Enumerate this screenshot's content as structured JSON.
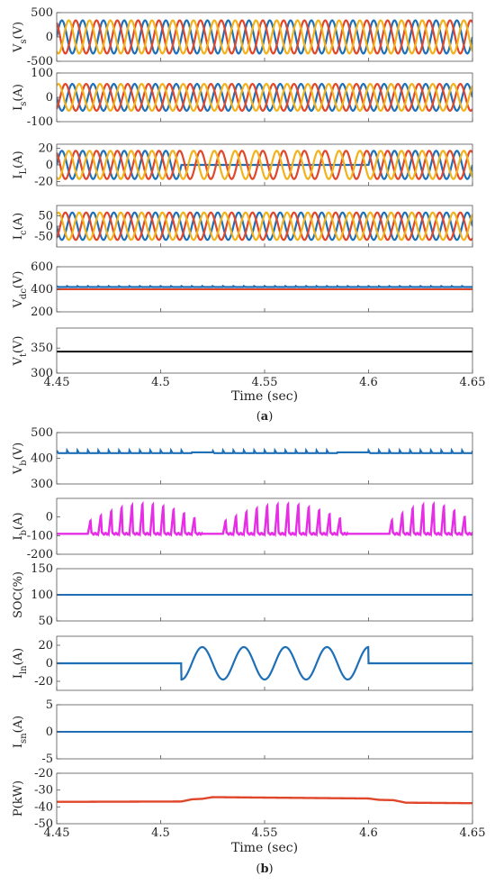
{
  "x_ticks": [
    "4.45",
    "4.5",
    "4.55",
    "4.6",
    "4.65"
  ],
  "colors": {
    "blue": "#1f6fb6",
    "red": "#e0462a",
    "yellow": "#f2b21b",
    "magenta": "#e62ee6",
    "black": "#111111",
    "frame": "#555555"
  },
  "chart_data": [
    {
      "type": "line",
      "panel": "a",
      "xlim": [
        4.45,
        4.65
      ],
      "xlabel": "Time (sec)",
      "caption": "(a)",
      "subplots": [
        {
          "ylabel_main": "V",
          "ylabel_sub": "s",
          "ylabel_unit": "(V)",
          "ylim": [
            -500,
            500
          ],
          "yticks": [
            "500",
            "0",
            "-500"
          ],
          "series": [
            {
              "color": "blue",
              "kind": "sine",
              "amplitude": 340,
              "frequency": 100,
              "phase_deg": 0
            },
            {
              "color": "red",
              "kind": "sine",
              "amplitude": 340,
              "frequency": 100,
              "phase_deg": 120
            },
            {
              "color": "yellow",
              "kind": "sine",
              "amplitude": 340,
              "frequency": 100,
              "phase_deg": 240
            }
          ]
        },
        {
          "ylabel_main": "I",
          "ylabel_sub": "s",
          "ylabel_unit": "(A)",
          "ylim": [
            -100,
            100
          ],
          "yticks": [
            "100",
            "0",
            "-100"
          ],
          "series": [
            {
              "color": "blue",
              "kind": "sine",
              "amplitude": 55,
              "frequency": 100,
              "phase_deg": 180
            },
            {
              "color": "red",
              "kind": "sine",
              "amplitude": 55,
              "frequency": 100,
              "phase_deg": 300
            },
            {
              "color": "yellow",
              "kind": "sine",
              "amplitude": 55,
              "frequency": 100,
              "phase_deg": 60
            }
          ]
        },
        {
          "ylabel_main": "I",
          "ylabel_sub": "L",
          "ylabel_unit": "(A)",
          "ylim": [
            -25,
            25
          ],
          "yticks": [
            "20",
            "0",
            "-20"
          ],
          "series": [
            {
              "color": "blue",
              "kind": "sine",
              "amplitude": 17,
              "frequency": 100,
              "phase_deg": 0,
              "zero_from": 4.51,
              "zero_to": 4.6
            },
            {
              "color": "red",
              "kind": "sine",
              "amplitude": 17,
              "frequency": 100,
              "phase_deg": 120
            },
            {
              "color": "yellow",
              "kind": "sine",
              "amplitude": 17,
              "frequency": 100,
              "phase_deg": 240
            }
          ]
        },
        {
          "ylabel_main": "I",
          "ylabel_sub": "c",
          "ylabel_unit": "(A)",
          "ylim": [
            -100,
            100
          ],
          "yticks": [
            "50",
            "0",
            "-50"
          ],
          "series": [
            {
              "color": "blue",
              "kind": "sine",
              "amplitude": 66,
              "frequency": 100,
              "phase_deg": 180
            },
            {
              "color": "red",
              "kind": "sine",
              "amplitude": 66,
              "frequency": 100,
              "phase_deg": 300
            },
            {
              "color": "yellow",
              "kind": "sine",
              "amplitude": 66,
              "frequency": 100,
              "phase_deg": 60
            }
          ]
        },
        {
          "ylabel_main": "V",
          "ylabel_sub": "dc",
          "ylabel_unit": "(V)",
          "ylim": [
            200,
            600
          ],
          "yticks": [
            "600",
            "400",
            "200"
          ],
          "series": [
            {
              "color": "blue",
              "kind": "ripple",
              "value": 420,
              "ripple": 4,
              "frequency": 200
            },
            {
              "color": "red",
              "kind": "constant",
              "value": 400
            }
          ]
        },
        {
          "ylabel_main": "V",
          "ylabel_sub": "t",
          "ylabel_unit": "(V)",
          "ylim": [
            300,
            390
          ],
          "yticks": [
            "350",
            "300"
          ],
          "series": [
            {
              "color": "black",
              "kind": "constant",
              "value": 343
            }
          ]
        }
      ]
    },
    {
      "type": "line",
      "panel": "b",
      "xlim": [
        4.45,
        4.65
      ],
      "xlabel": "Time (sec)",
      "caption": "(b)",
      "subplots": [
        {
          "ylabel_main": "V",
          "ylabel_sub": "b",
          "ylabel_unit": "(V)",
          "ylim": [
            300,
            500
          ],
          "yticks": [
            "500",
            "400",
            "300"
          ],
          "series": [
            {
              "color": "blue",
              "kind": "ripple",
              "value": 420,
              "ripple": 5,
              "frequency": 200,
              "quiet": [
                [
                  4.515,
                  4.525
                ],
                [
                  4.585,
                  4.6
                ]
              ]
            }
          ]
        },
        {
          "ylabel_main": "I",
          "ylabel_sub": "b",
          "ylabel_unit": "(A)",
          "ylim": [
            -200,
            100
          ],
          "yticks": [
            "0",
            "-100",
            "-200"
          ],
          "series": [
            {
              "color": "magenta",
              "kind": "pulse",
              "value": -90,
              "peak": 80,
              "frequency": 200,
              "bursts": [
                [
                  4.465,
                  4.52
                ],
                [
                  4.53,
                  4.59
                ],
                [
                  4.61,
                  4.65
                ]
              ]
            }
          ]
        },
        {
          "ylabel_main": "SOC",
          "ylabel_sub": "",
          "ylabel_unit": "(%)",
          "ylim": [
            50,
            150
          ],
          "yticks": [
            "150",
            "100",
            "50"
          ],
          "series": [
            {
              "color": "blue",
              "kind": "constant",
              "value": 100
            }
          ]
        },
        {
          "ylabel_main": "I",
          "ylabel_sub": "ln",
          "ylabel_unit": "(A)",
          "ylim": [
            -30,
            30
          ],
          "yticks": [
            "20",
            "0",
            "-20"
          ],
          "series": [
            {
              "color": "blue",
              "kind": "sine",
              "amplitude": 18,
              "frequency": 50,
              "phase_deg": -270,
              "active_from": 4.51,
              "active_to": 4.6
            }
          ]
        },
        {
          "ylabel_main": "I",
          "ylabel_sub": "sn",
          "ylabel_unit": "(A)",
          "ylim": [
            -5,
            5
          ],
          "yticks": [
            "5",
            "0",
            "-5"
          ],
          "series": [
            {
              "color": "blue",
              "kind": "constant",
              "value": 0
            }
          ]
        },
        {
          "ylabel_main": "P",
          "ylabel_sub": "",
          "ylabel_unit": "(kW)",
          "ylim": [
            -50,
            -20
          ],
          "yticks": [
            "-20",
            "-30",
            "-40",
            "-50"
          ],
          "series": [
            {
              "color": "red",
              "kind": "piecewise",
              "points": [
                [
                  4.45,
                  -37
                ],
                [
                  4.51,
                  -36.8
                ],
                [
                  4.515,
                  -35.5
                ],
                [
                  4.52,
                  -35.2
                ],
                [
                  4.525,
                  -34.2
                ],
                [
                  4.6,
                  -35
                ],
                [
                  4.605,
                  -35.8
                ],
                [
                  4.612,
                  -36
                ],
                [
                  4.618,
                  -37.5
                ],
                [
                  4.65,
                  -37.8
                ]
              ]
            }
          ]
        }
      ]
    }
  ]
}
